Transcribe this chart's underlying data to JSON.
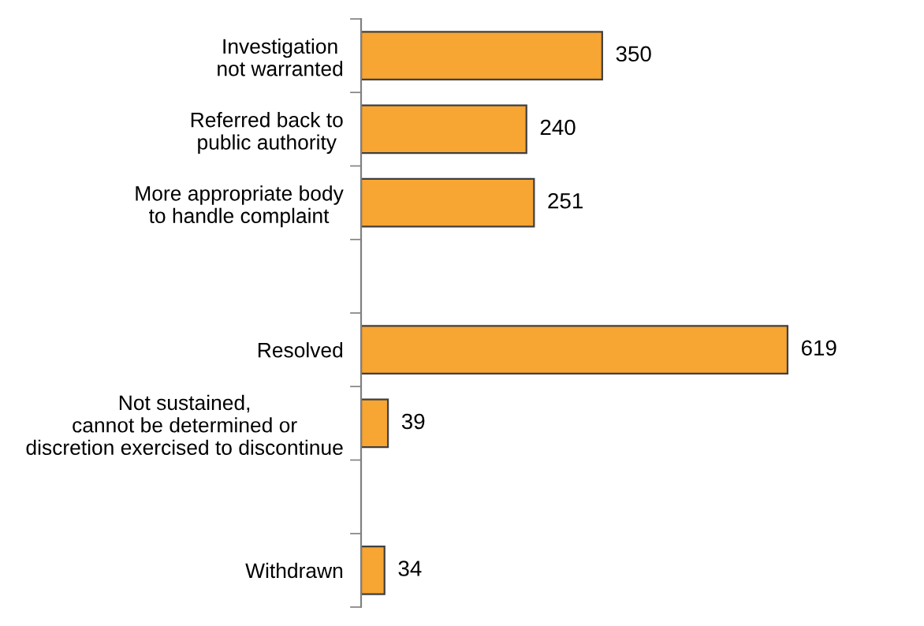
{
  "chart_data": {
    "type": "bar",
    "orientation": "horizontal",
    "categories": [
      "Investigation\nnot warranted",
      "Referred back to\npublic authority",
      "More appropriate body\nto handle complaint",
      null,
      "Resolved",
      "Not sustained,\ncannot be determined or\ndiscretion exercised to discontinue",
      null,
      "Withdrawn"
    ],
    "values": [
      350,
      240,
      251,
      null,
      619,
      39,
      null,
      34
    ],
    "color": "#f7a533",
    "data_labels": true,
    "grid": false,
    "legend": false
  }
}
